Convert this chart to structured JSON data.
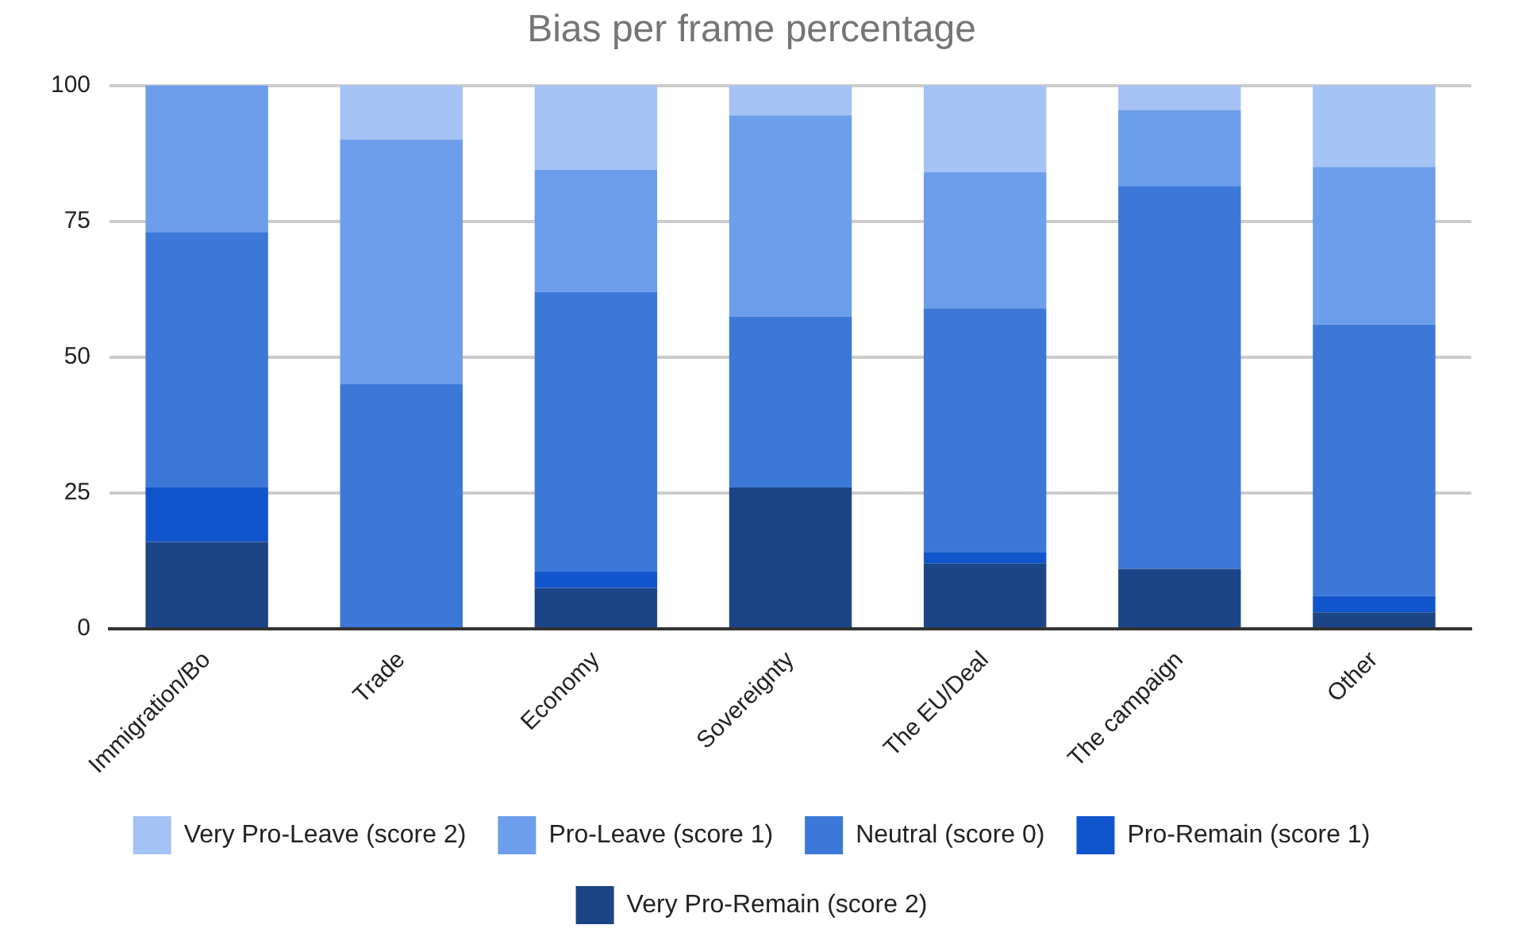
{
  "chart_data": {
    "type": "bar",
    "title": "Bias per frame percentage",
    "stacked": true,
    "categories": [
      "Immigration/Bo",
      "Trade",
      "Economy",
      "Sovereignty",
      "The EU/Deal",
      "The campaign",
      "Other"
    ],
    "series": [
      {
        "name": "Very Pro-Remain (score 2)",
        "color": "#1c4587",
        "values": [
          16,
          0,
          7.5,
          26,
          12,
          11,
          3
        ]
      },
      {
        "name": "Pro-Remain (score 1)",
        "color": "#1155cc",
        "values": [
          10,
          0,
          3,
          0,
          2,
          0,
          3
        ]
      },
      {
        "name": "Neutral (score 0)",
        "color": "#3c78d8",
        "values": [
          47,
          45,
          51.5,
          31.5,
          45,
          70.5,
          50
        ]
      },
      {
        "name": "Pro-Leave (score 1)",
        "color": "#6d9eeb",
        "values": [
          27,
          45,
          22.5,
          37,
          25,
          14,
          29
        ]
      },
      {
        "name": "Very Pro-Leave (score 2)",
        "color": "#a4c2f4",
        "values": [
          0,
          10,
          15.5,
          5.5,
          16,
          4.5,
          15
        ]
      }
    ],
    "ylim": [
      0,
      100
    ],
    "yticks": [
      0,
      25,
      50,
      75,
      100
    ],
    "grid": "y",
    "legend": "bottom"
  }
}
